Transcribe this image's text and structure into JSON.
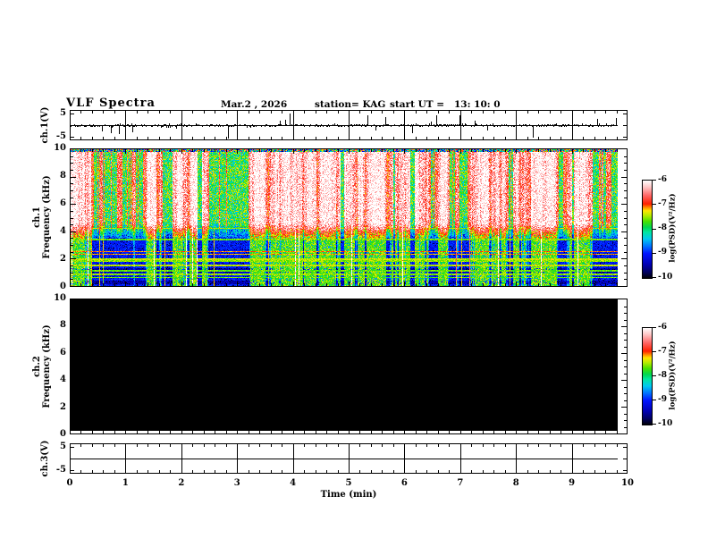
{
  "header": {
    "title": "VLF Spectra",
    "date": "Mar.2 , 2026",
    "station_label": "station= KAG",
    "start_ut_label": "start UT =   13: 10: 0"
  },
  "xaxis": {
    "label": "Time (min)",
    "tick_labels": [
      "0",
      "1",
      "2",
      "3",
      "4",
      "5",
      "6",
      "7",
      "8",
      "9",
      "10"
    ]
  },
  "panels": {
    "ch1_wave": {
      "ylabel": "ch.1(V)",
      "tick_labels": [
        "5",
        "-5"
      ]
    },
    "ch1_spec": {
      "ylabel_ch": "ch.1",
      "ylabel_freq": "Frequency (kHz)",
      "tick_labels": [
        "10",
        "8",
        "6",
        "4",
        "2",
        "0"
      ]
    },
    "ch2_spec": {
      "ylabel_ch": "ch.2",
      "ylabel_freq": "Frequency (kHz)",
      "tick_labels": [
        "10",
        "8",
        "6",
        "4",
        "2",
        "0"
      ]
    },
    "ch3_wave": {
      "ylabel": "ch.3(V)",
      "tick_labels": [
        "5",
        "-5"
      ]
    }
  },
  "colorbar": {
    "label": "log(PSD)(V²/Hz)",
    "tick_labels": [
      "-6",
      "-7",
      "-8",
      "-9",
      "-10"
    ],
    "stops": [
      [
        0.0,
        "#000008"
      ],
      [
        0.06,
        "#000060"
      ],
      [
        0.14,
        "#0000b4"
      ],
      [
        0.25,
        "#0014ff"
      ],
      [
        0.33,
        "#0078ff"
      ],
      [
        0.4,
        "#00c8f0"
      ],
      [
        0.47,
        "#00e6a0"
      ],
      [
        0.52,
        "#00d750"
      ],
      [
        0.58,
        "#46e100"
      ],
      [
        0.64,
        "#b4eb00"
      ],
      [
        0.69,
        "#ffe600"
      ],
      [
        0.72,
        "#ff9600"
      ],
      [
        0.76,
        "#ff2000"
      ],
      [
        0.85,
        "#ff6a6a"
      ],
      [
        0.93,
        "#ffc3c3"
      ],
      [
        1.0,
        "#ffffff"
      ]
    ]
  },
  "chart_data": [
    {
      "type": "line",
      "name": "ch.1(V) voltage time series",
      "x_unit": "min",
      "x_range": [
        0,
        9.8
      ],
      "y_unit": "V",
      "y_range": [
        -5,
        5
      ],
      "description": "broadband noise centered on 0 V with frequent impulsive spikes (sferics) up to about +/-4 V",
      "baseline_v": 0,
      "noise_amplitude_v": 0.3,
      "spike_probability": 0.045,
      "spike_max_v": 4,
      "render_seed": 987654321
    },
    {
      "type": "heatmap",
      "name": "ch.1 VLF spectrogram",
      "x_unit": "min",
      "x_range": [
        0,
        9.8
      ],
      "y_unit": "kHz",
      "y_range": [
        0,
        10
      ],
      "z_label": "log(PSD)(V²/Hz)",
      "z_range": [
        -10,
        -6
      ],
      "description": "intense impulsive broadband activity above ~4 kHz (saturated white/red vertical streaks near -6), weaker blue background (~ -9.5) below 3.5 kHz crossed by narrowband horizontal interference lines and occasional full-band red sferic streaks",
      "interference_lines_khz": [
        4.25,
        3.45,
        2.55,
        2.35,
        2.0,
        1.85,
        1.55,
        1.15,
        0.9,
        0.65
      ],
      "interference_line_strengths": [
        0.5,
        0.3,
        0.75,
        0.7,
        0.5,
        0.4,
        0.5,
        0.3,
        0.4,
        0.3
      ],
      "quiet_bands_khz": [
        [
          0.15,
          0.45
        ],
        [
          1.0,
          1.35
        ]
      ],
      "render_seed": 20260302
    },
    {
      "type": "heatmap",
      "name": "ch.2 VLF spectrogram",
      "x_unit": "min",
      "x_range": [
        0,
        9.8
      ],
      "y_unit": "kHz",
      "y_range": [
        0,
        10
      ],
      "z_label": "log(PSD)(V²/Hz)",
      "z_range": [
        -10,
        -6
      ],
      "description": "no signal - uniform power at or below -10, rendered solid black",
      "uniform_z": -10
    },
    {
      "type": "line",
      "name": "ch.3(V) voltage time series",
      "x_unit": "min",
      "x_range": [
        0,
        9.8
      ],
      "y_unit": "V",
      "y_range": [
        -5,
        5
      ],
      "description": "perfectly flat trace at 0 V (channel inactive)",
      "constant_v": 0
    }
  ]
}
